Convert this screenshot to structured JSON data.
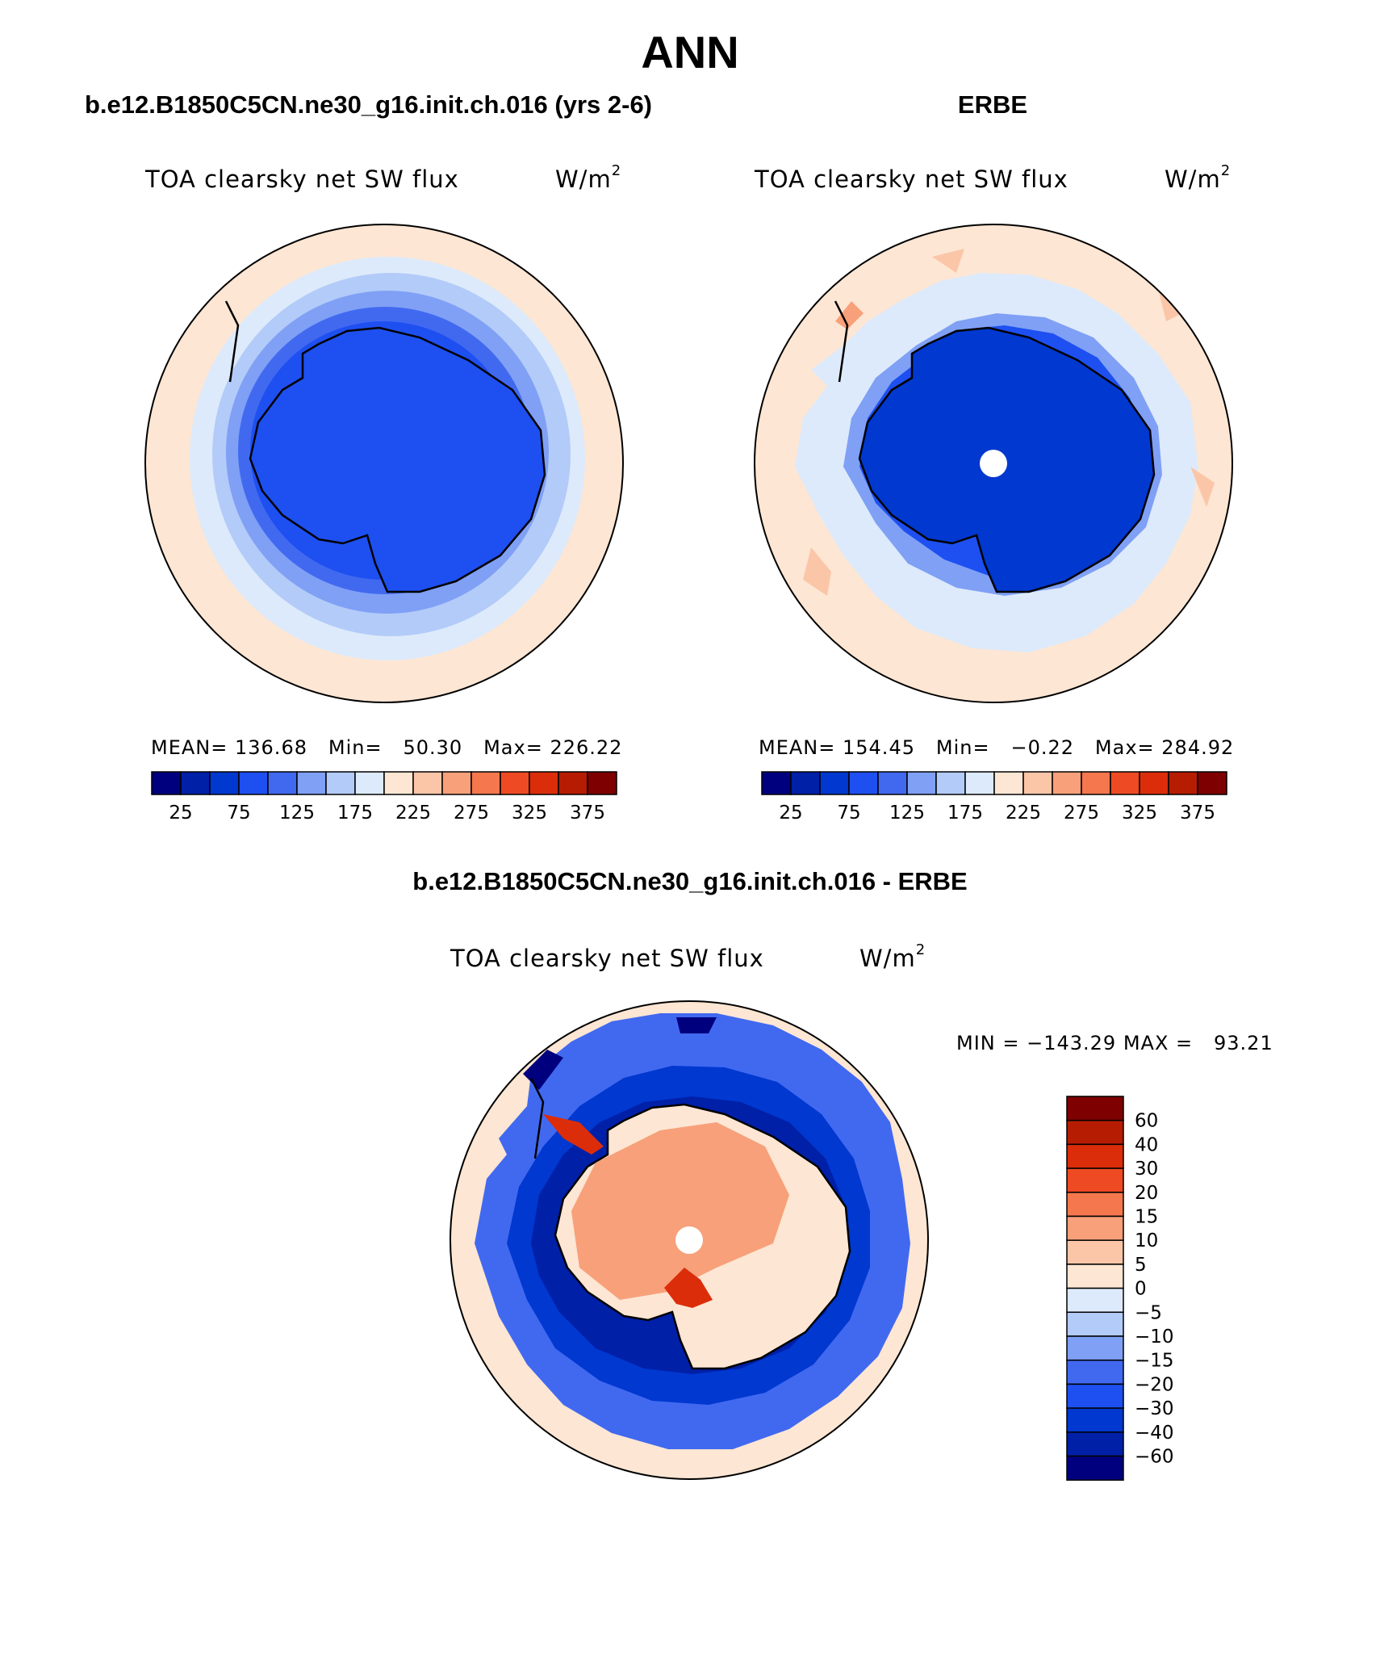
{
  "figure": {
    "title": "ANN",
    "left_title": "b.e12.B1850C5CN.ne30_g16.init.ch.016 (yrs 2-6)",
    "right_title": "ERBE",
    "diff_title": "b.e12.B1850C5CN.ne30_g16.init.ch.016 - ERBE"
  },
  "panels": {
    "model": {
      "variable": "TOA clearsky net SW flux",
      "units": "W/m",
      "units_exp": "2",
      "mean_label": "MEAN=",
      "mean": "136.68",
      "min_label": "Min=",
      "min": "50.30",
      "max_label": "Max=",
      "max": "226.22"
    },
    "obs": {
      "variable": "TOA clearsky net SW flux",
      "units": "W/m",
      "units_exp": "2",
      "mean_label": "MEAN=",
      "mean": "154.45",
      "min_label": "Min=",
      "min": "−0.22",
      "max_label": "Max=",
      "max": "284.92"
    },
    "diff": {
      "variable": "TOA clearsky net SW flux",
      "units": "W/m",
      "units_exp": "2",
      "minmax": "MIN = −143.29 MAX =   93.21"
    }
  },
  "colorbars": {
    "abs": {
      "colors": [
        "#00007f",
        "#0020a8",
        "#0038d0",
        "#1e4ff0",
        "#4169f0",
        "#7fa0f5",
        "#b3cbf8",
        "#ddeafb",
        "#fde6d3",
        "#fbc6a8",
        "#f8a07a",
        "#f4774d",
        "#ee4a23",
        "#dc2d0a",
        "#b61c02",
        "#7f0000"
      ],
      "tick_labels": [
        "25",
        "75",
        "125",
        "175",
        "225",
        "275",
        "325",
        "375"
      ]
    },
    "diff": {
      "colors_top_to_bottom": [
        "#7f0000",
        "#b61c02",
        "#dc2d0a",
        "#ee4a23",
        "#f4774d",
        "#f8a07a",
        "#fbc6a8",
        "#fde6d3",
        "#ddeafb",
        "#b3cbf8",
        "#7fa0f5",
        "#4169f0",
        "#1e4ff0",
        "#0038d0",
        "#0020a8",
        "#00007f"
      ],
      "labels": [
        "60",
        "40",
        "30",
        "20",
        "15",
        "10",
        "5",
        "0",
        "−5",
        "−10",
        "−15",
        "−20",
        "−30",
        "−40",
        "−60"
      ]
    }
  }
}
